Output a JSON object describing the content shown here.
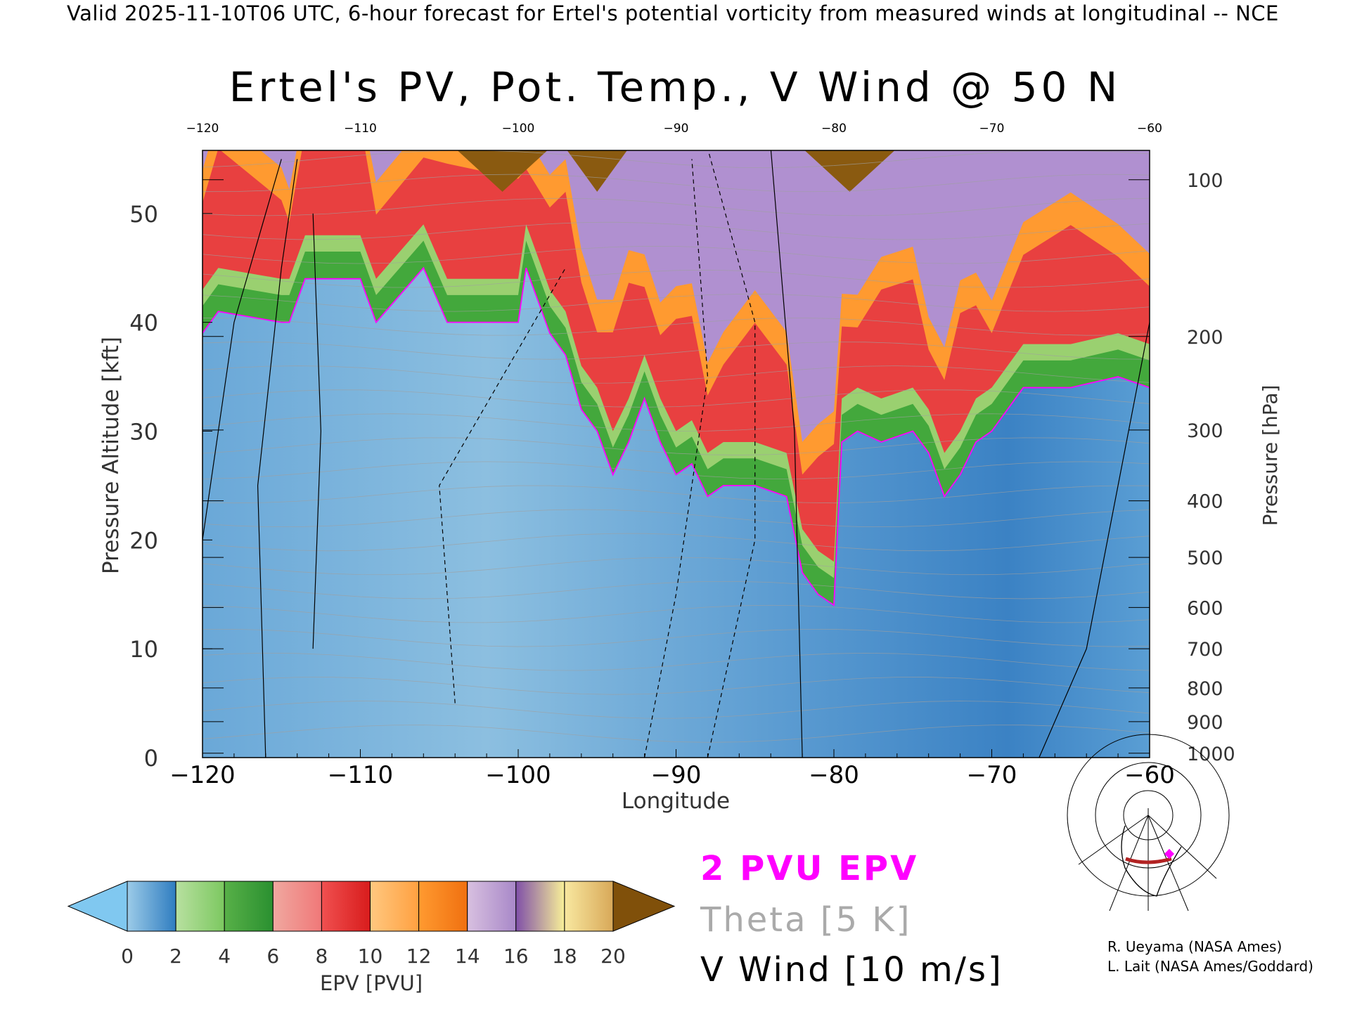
{
  "header": "Valid 2025-11-10T06 UTC, 6-hour forecast for Ertel's potential vorticity from measured winds at longitudinal -- NCE",
  "chart_data": {
    "type": "heatmap",
    "title": "Ertel's PV, Pot. Temp., V Wind @ 50 N",
    "xlabel": "Longitude",
    "ylabel": "Pressure Altitude [kft]",
    "y2label": "Pressure [hPa]",
    "xlim": [
      -120,
      -60
    ],
    "ylim": [
      0,
      55.8
    ],
    "x_ticks": [
      -120,
      -110,
      -100,
      -90,
      -80,
      -70,
      -60
    ],
    "x_tick_labels": [
      "−120",
      "−110",
      "−100",
      "−90",
      "−80",
      "−70",
      "−60"
    ],
    "y_ticks": [
      0,
      10,
      20,
      30,
      40,
      50
    ],
    "y2_ticks": [
      {
        "label": "100",
        "kft": 53.1
      },
      {
        "label": "200",
        "kft": 38.7
      },
      {
        "label": "300",
        "kft": 30.1
      },
      {
        "label": "400",
        "kft": 23.6
      },
      {
        "label": "500",
        "kft": 18.4
      },
      {
        "label": "600",
        "kft": 13.8
      },
      {
        "label": "700",
        "kft": 10.0
      },
      {
        "label": "800",
        "kft": 6.4
      },
      {
        "label": "900",
        "kft": 3.3
      },
      {
        "label": "1000",
        "kft": 0.4
      }
    ],
    "tropopause_2pvu": {
      "name": "2 PVU EPV",
      "lon": [
        -120,
        -119,
        -115,
        -114.5,
        -113.5,
        -110,
        -109,
        -106,
        -104.5,
        -100,
        -99.5,
        -98,
        -97,
        -96,
        -95,
        -94,
        -93,
        -92,
        -91,
        -90,
        -89,
        -88,
        -87,
        -85,
        -83,
        -82,
        -81,
        -80,
        -79.5,
        -78.5,
        -77,
        -75,
        -74,
        -73,
        -72,
        -71,
        -70,
        -68,
        -65,
        -62,
        -60
      ],
      "kft": [
        39,
        41,
        40,
        40,
        44,
        44,
        40,
        45,
        40,
        40,
        45,
        39,
        37,
        32,
        30,
        26,
        29,
        33,
        29,
        26,
        27,
        24,
        25,
        25,
        24,
        17,
        15,
        14,
        29,
        30,
        29,
        30,
        28,
        24,
        26,
        29,
        30,
        34,
        34,
        35,
        34
      ]
    },
    "colorbar": {
      "label": "EPV [PVU]",
      "ticks": [
        "0",
        "2",
        "4",
        "6",
        "8",
        "10",
        "12",
        "14",
        "16",
        "18",
        "20"
      ],
      "bins": [
        [
          "#9ccbe8",
          "#2f7dc0"
        ],
        [
          "#b8e0a0",
          "#7cc860"
        ],
        [
          "#58b048",
          "#2a9030"
        ],
        [
          "#f0a8a0",
          "#f07878"
        ],
        [
          "#f05050",
          "#d81c1c"
        ],
        [
          "#ffc880",
          "#ffa040"
        ],
        [
          "#ff9a30",
          "#f07010"
        ],
        [
          "#d8c0e0",
          "#a888c8"
        ],
        [
          "#8050a8",
          "#f8f098"
        ],
        [
          "#f8e8a0",
          "#d8a858"
        ]
      ],
      "under_color": "#80c8f0",
      "over_color": "#80500a"
    },
    "legend": {
      "epv": "2 PVU EPV",
      "theta": "Theta [5 K]",
      "vwind": "V Wind [10 m/s]",
      "epv_color": "#ff00ff",
      "theta_color": "#aaaaaa",
      "vwind_color": "#000000"
    }
  },
  "credits": [
    "R. Ueyama (NASA Ames)",
    "L. Lait (NASA Ames/Goddard)"
  ]
}
